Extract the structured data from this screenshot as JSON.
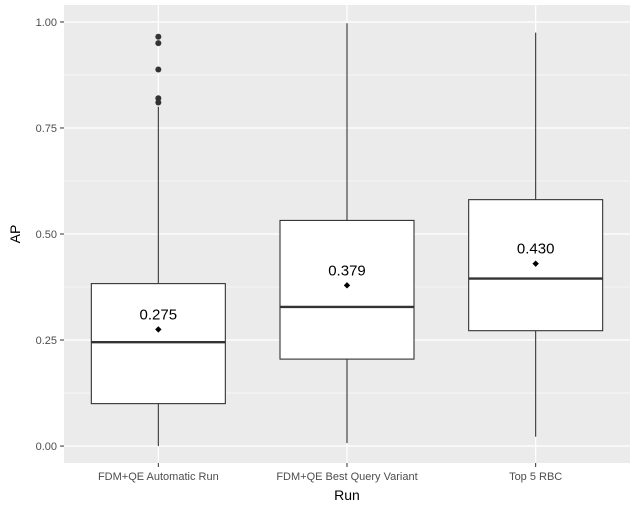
{
  "chart_data": {
    "type": "boxplot",
    "xlabel": "Run",
    "ylabel": "AP",
    "ylim": [
      -0.04,
      1.04
    ],
    "yticks": [
      0.0,
      0.25,
      0.5,
      0.75,
      1.0
    ],
    "ytick_labels": [
      "0.00",
      "0.25",
      "0.50",
      "0.75",
      "1.00"
    ],
    "grid": true,
    "panel_background": "#ebebeb",
    "boxes": [
      {
        "category": "FDM+QE Automatic Run",
        "whisker_low": 0.0,
        "q1": 0.1,
        "median": 0.245,
        "q3": 0.383,
        "whisker_high": 0.8,
        "mean": 0.275,
        "mean_label": "0.275",
        "outliers": [
          0.81,
          0.82,
          0.888,
          0.95,
          0.965
        ]
      },
      {
        "category": "FDM+QE Best Query Variant",
        "whisker_low": 0.007,
        "q1": 0.205,
        "median": 0.328,
        "q3": 0.532,
        "whisker_high": 0.997,
        "mean": 0.379,
        "mean_label": "0.379",
        "outliers": []
      },
      {
        "category": "Top 5 RBC",
        "whisker_low": 0.022,
        "q1": 0.272,
        "median": 0.395,
        "q3": 0.581,
        "whisker_high": 0.975,
        "mean": 0.43,
        "mean_label": "0.430",
        "outliers": []
      }
    ]
  }
}
